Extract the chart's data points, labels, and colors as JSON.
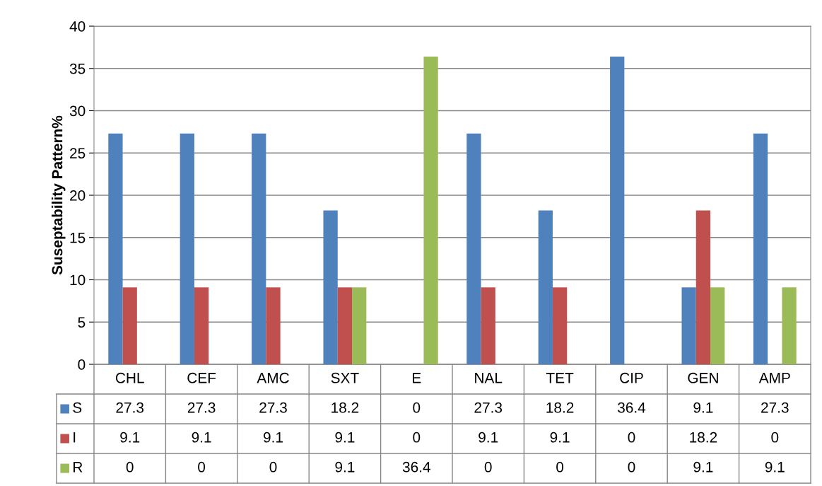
{
  "chart_data": {
    "type": "bar",
    "ylabel": "Suseptability Pattern%",
    "categories": [
      "CHL",
      "CEF",
      "AMC",
      "SXT",
      "E",
      "NAL",
      "TET",
      "CIP",
      "GEN",
      "AMP"
    ],
    "series": [
      {
        "name": "S",
        "color": "#4f81bd",
        "values": [
          27.3,
          27.3,
          27.3,
          18.2,
          0,
          27.3,
          18.2,
          36.4,
          9.1,
          27.3
        ]
      },
      {
        "name": "I",
        "color": "#c0504d",
        "values": [
          9.1,
          9.1,
          9.1,
          9.1,
          0,
          9.1,
          9.1,
          0,
          18.2,
          0
        ]
      },
      {
        "name": "R",
        "color": "#9bbb59",
        "values": [
          0,
          0,
          0,
          9.1,
          36.4,
          0,
          0,
          0,
          9.1,
          9.1
        ]
      }
    ],
    "ylim": [
      0,
      40
    ],
    "yticks": [
      0,
      5,
      10,
      15,
      20,
      25,
      30,
      35,
      40
    ],
    "grid": "y",
    "data_labels": true,
    "legend": "bottom"
  }
}
